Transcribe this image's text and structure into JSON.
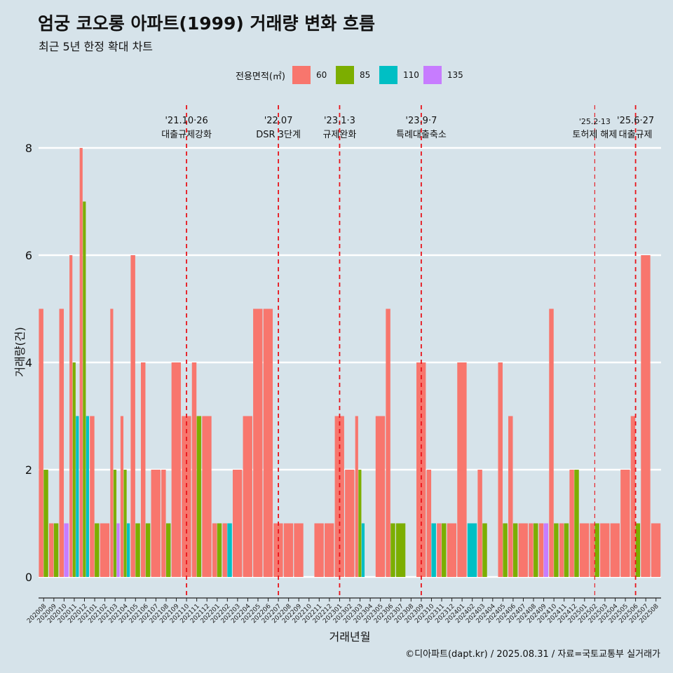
{
  "title": "엄궁 코오롱 아파트(1999) 거래량 변화 흐름",
  "subtitle": "최근 5년 한정 확대 차트",
  "caption": "©디아파트(dapt.kr) / 2025.08.31 / 자료=국토교통부 실거래가",
  "legend": {
    "title": "전용면적(㎡)",
    "items": [
      {
        "label": "60",
        "color": "#f8766d"
      },
      {
        "label": "85",
        "color": "#7cae00"
      },
      {
        "label": "110",
        "color": "#00bfc4"
      },
      {
        "label": "135",
        "color": "#c77cff"
      }
    ]
  },
  "chart_data": {
    "type": "bar",
    "xlabel": "거래년월",
    "ylabel": "거래량(건)",
    "ylim": [
      0,
      8
    ],
    "yticks": [
      0,
      2,
      4,
      6,
      8
    ],
    "grid": "horizontal",
    "legend_position": "top",
    "categories": [
      "202008",
      "202009",
      "202010",
      "202011",
      "202012",
      "202101",
      "202102",
      "202103",
      "202104",
      "202105",
      "202106",
      "202107",
      "202108",
      "202109",
      "202110",
      "202111",
      "202112",
      "202201",
      "202202",
      "202203",
      "202204",
      "202205",
      "202206",
      "202207",
      "202208",
      "202209",
      "202210",
      "202211",
      "202212",
      "202301",
      "202302",
      "202303",
      "202304",
      "202305",
      "202306",
      "202307",
      "202308",
      "202309",
      "202310",
      "202311",
      "202312",
      "202401",
      "202402",
      "202403",
      "202404",
      "202405",
      "202406",
      "202407",
      "202408",
      "202409",
      "202410",
      "202411",
      "202412",
      "202501",
      "202502",
      "202503",
      "202504",
      "202505",
      "202506",
      "202507",
      "202508"
    ],
    "series": [
      {
        "name": "60",
        "color": "#f8766d",
        "values": [
          5,
          1,
          5,
          6,
          8,
          3,
          1,
          5,
          3,
          6,
          4,
          2,
          2,
          4,
          3,
          4,
          3,
          1,
          1,
          2,
          3,
          5,
          5,
          1,
          1,
          1,
          0,
          1,
          1,
          3,
          2,
          3,
          0,
          3,
          5,
          0,
          0,
          4,
          2,
          1,
          1,
          4,
          0,
          2,
          0,
          4,
          3,
          1,
          1,
          1,
          5,
          1,
          2,
          1,
          1,
          1,
          1,
          2,
          3,
          6,
          1
        ]
      },
      {
        "name": "85",
        "color": "#7cae00",
        "values": [
          2,
          1,
          0,
          4,
          7,
          1,
          0,
          2,
          2,
          1,
          1,
          0,
          1,
          0,
          0,
          3,
          0,
          1,
          0,
          0,
          0,
          0,
          0,
          0,
          0,
          0,
          0,
          0,
          0,
          0,
          0,
          2,
          0,
          0,
          1,
          1,
          0,
          0,
          0,
          1,
          0,
          0,
          0,
          1,
          0,
          1,
          1,
          0,
          1,
          0,
          1,
          1,
          2,
          0,
          1,
          0,
          0,
          0,
          1,
          0,
          0
        ]
      },
      {
        "name": "110",
        "color": "#00bfc4",
        "values": [
          0,
          0,
          0,
          3,
          3,
          0,
          0,
          0,
          1,
          0,
          0,
          0,
          0,
          0,
          0,
          0,
          0,
          0,
          1,
          0,
          0,
          0,
          0,
          0,
          0,
          0,
          0,
          0,
          0,
          0,
          0,
          1,
          0,
          0,
          0,
          0,
          0,
          0,
          1,
          0,
          0,
          0,
          1,
          0,
          0,
          0,
          0,
          0,
          0,
          0,
          0,
          0,
          0,
          0,
          0,
          0,
          0,
          0,
          0,
          0,
          0
        ]
      },
      {
        "name": "135",
        "color": "#c77cff",
        "values": [
          0,
          0,
          1,
          0,
          0,
          0,
          0,
          1,
          0,
          0,
          0,
          0,
          0,
          0,
          0,
          0,
          0,
          0,
          0,
          0,
          0,
          0,
          0,
          0,
          0,
          0,
          0,
          0,
          0,
          0,
          0,
          0,
          0,
          0,
          0,
          0,
          0,
          0,
          0,
          0,
          0,
          0,
          0,
          0,
          0,
          0,
          0,
          0,
          0,
          1,
          0,
          0,
          0,
          0,
          0,
          0,
          0,
          0,
          0,
          0,
          0
        ]
      }
    ],
    "annotations": [
      {
        "x": "202110",
        "date": "'21.10·26",
        "label": "대출규제강화",
        "style": "thick"
      },
      {
        "x": "202207",
        "date": "'22.07",
        "label": "DSR 3단계",
        "style": "thick"
      },
      {
        "x": "202301",
        "date": "'23.1·3",
        "label": "규제완화",
        "style": "thick"
      },
      {
        "x": "202309",
        "date": "'23.9·7",
        "label": "특례대출축소",
        "style": "thick"
      },
      {
        "x": "202502",
        "date": "'25.2·13",
        "label": "토허제 해제",
        "style": "thin"
      },
      {
        "x": "202506",
        "date": "'25.6·27",
        "label": "대출규제",
        "style": "thick"
      }
    ]
  }
}
